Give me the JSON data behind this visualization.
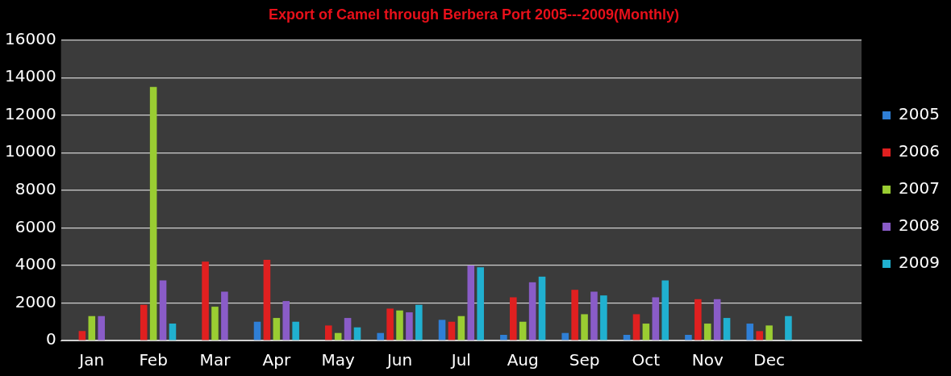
{
  "chart_data": {
    "type": "bar",
    "title": "Export of Camel through Berbera Port 2005---2009(Monthly)",
    "categories": [
      "Jan",
      "Feb",
      "Mar",
      "Apr",
      "May",
      "Jun",
      "Jul",
      "Aug",
      "Sep",
      "Oct",
      "Nov",
      "Dec",
      null
    ],
    "series": [
      {
        "name": "2005",
        "color": "#2f7fd6",
        "values": [
          null,
          null,
          null,
          1000,
          null,
          400,
          1100,
          300,
          400,
          300,
          300,
          900,
          null
        ]
      },
      {
        "name": "2006",
        "color": "#e02020",
        "values": [
          500,
          1900,
          4200,
          4300,
          800,
          1700,
          1000,
          2300,
          2700,
          1400,
          2200,
          500,
          null
        ]
      },
      {
        "name": "2007",
        "color": "#9acd32",
        "values": [
          1300,
          13500,
          1800,
          1200,
          400,
          1600,
          1300,
          1000,
          1400,
          900,
          900,
          800,
          null
        ]
      },
      {
        "name": "2008",
        "color": "#8a5cc8",
        "values": [
          1300,
          3200,
          2600,
          2100,
          1200,
          1500,
          4000,
          3100,
          2600,
          2300,
          2200,
          null,
          null
        ]
      },
      {
        "name": "2009",
        "color": "#20b0d0",
        "values": [
          null,
          900,
          null,
          1000,
          700,
          1900,
          3900,
          3400,
          2400,
          3200,
          1200,
          1300,
          null
        ]
      }
    ],
    "ylim": [
      0,
      16000
    ],
    "yticks": [
      0,
      2000,
      4000,
      6000,
      8000,
      10000,
      12000,
      14000,
      16000
    ],
    "grid": "y",
    "legend": "right"
  }
}
